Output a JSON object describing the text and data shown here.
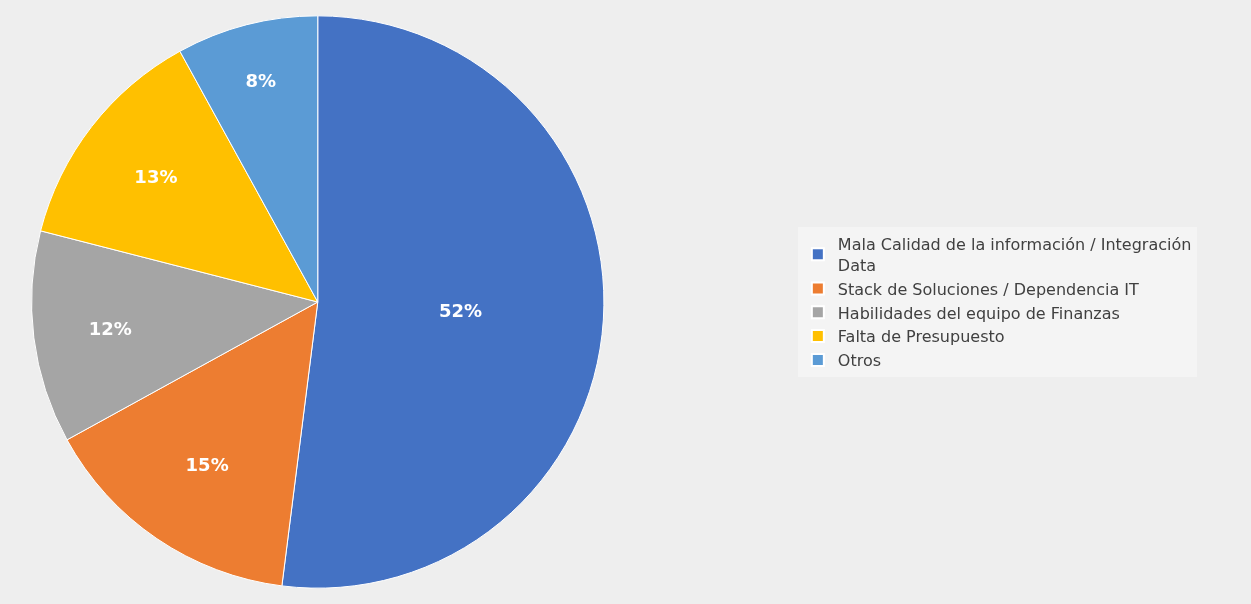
{
  "chart_data": {
    "type": "pie",
    "categories": [
      "Mala Calidad de la información / Integración Data",
      "Stack de Soluciones / Dependencia IT",
      "Habilidades del equipo de Finanzas",
      "Falta de Presupuesto",
      "Otros"
    ],
    "values": [
      52,
      15,
      12,
      13,
      8
    ],
    "colors": [
      "#4472c4",
      "#ed7d31",
      "#a5a5a5",
      "#ffc000",
      "#5b9bd5"
    ],
    "value_labels": [
      "52%",
      "15%",
      "12%",
      "13%",
      "8%"
    ],
    "legend": "right"
  }
}
